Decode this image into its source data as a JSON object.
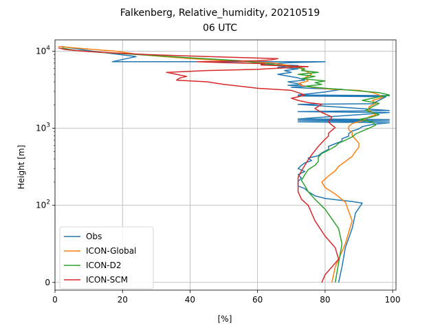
{
  "chart_data": {
    "type": "line",
    "title": "Falkenberg, Relative_humidity, 20210519",
    "subtitle": "06 UTC",
    "xlabel": "[%]",
    "ylabel": "Height [m]",
    "xlim": [
      0,
      101
    ],
    "y_scale": "symlog",
    "ylim": [
      -10,
      14000
    ],
    "grid": true,
    "legend_position": "lower-left",
    "x_ticks": [
      "0",
      "20",
      "40",
      "60",
      "80",
      "100"
    ],
    "y_ticks": [
      {
        "value": 0,
        "label": "0"
      },
      {
        "value": 100,
        "label": "10^2"
      },
      {
        "value": 1000,
        "label": "10^3"
      },
      {
        "value": 10000,
        "label": "10^4"
      }
    ],
    "series": [
      {
        "name": "Obs",
        "color": "#1f77b4",
        "points": [
          [
            84,
            0
          ],
          [
            85,
            20
          ],
          [
            86,
            45
          ],
          [
            88,
            70
          ],
          [
            89,
            90
          ],
          [
            91,
            107
          ],
          [
            88,
            112
          ],
          [
            84,
            117
          ],
          [
            80,
            123
          ],
          [
            77,
            133
          ],
          [
            75,
            150
          ],
          [
            74,
            165
          ],
          [
            72,
            178
          ],
          [
            72,
            190
          ],
          [
            72,
            205
          ],
          [
            73,
            225
          ],
          [
            72,
            250
          ],
          [
            74,
            275
          ],
          [
            72,
            300
          ],
          [
            73,
            330
          ],
          [
            74,
            355
          ],
          [
            76,
            380
          ],
          [
            75,
            410
          ],
          [
            78,
            440
          ],
          [
            79,
            480
          ],
          [
            81,
            530
          ],
          [
            81,
            580
          ],
          [
            83,
            630
          ],
          [
            85,
            680
          ],
          [
            85,
            730
          ],
          [
            87,
            790
          ],
          [
            87,
            850
          ],
          [
            88,
            920
          ],
          [
            90,
            980
          ],
          [
            91,
            1050
          ],
          [
            94,
            1120
          ],
          [
            99,
            1180
          ],
          [
            72,
            1210
          ],
          [
            99,
            1240
          ],
          [
            72,
            1270
          ],
          [
            99,
            1300
          ],
          [
            72,
            1320
          ],
          [
            99,
            1600
          ],
          [
            72,
            1640
          ],
          [
            99,
            1700
          ],
          [
            72,
            2040
          ],
          [
            94,
            2080
          ],
          [
            98,
            2560
          ],
          [
            72,
            2620
          ],
          [
            99,
            2650
          ],
          [
            72,
            2700
          ],
          [
            80,
            2950
          ],
          [
            85,
            3200
          ],
          [
            75,
            3300
          ],
          [
            70,
            3400
          ],
          [
            75,
            3500
          ],
          [
            69,
            3600
          ],
          [
            73,
            3700
          ],
          [
            72,
            3800
          ],
          [
            70,
            3900
          ],
          [
            69,
            4000
          ],
          [
            74,
            4200
          ],
          [
            72,
            4500
          ],
          [
            66,
            5000
          ],
          [
            70,
            5300
          ],
          [
            68,
            5600
          ],
          [
            72,
            5900
          ],
          [
            66,
            6200
          ],
          [
            72,
            6500
          ],
          [
            61,
            6800
          ],
          [
            70,
            7100
          ],
          [
            80,
            7300
          ],
          [
            17,
            7300
          ],
          [
            24,
            8500
          ],
          [
            11,
            10000
          ],
          [
            2,
            11500
          ]
        ]
      },
      {
        "name": "ICON-Global",
        "color": "#ff7f0e",
        "points": [
          [
            82,
            0
          ],
          [
            83,
            20
          ],
          [
            86,
            50
          ],
          [
            88,
            80
          ],
          [
            86,
            110
          ],
          [
            83,
            140
          ],
          [
            80,
            170
          ],
          [
            79,
            200
          ],
          [
            81,
            240
          ],
          [
            83,
            280
          ],
          [
            84,
            320
          ],
          [
            86,
            370
          ],
          [
            88,
            430
          ],
          [
            89,
            500
          ],
          [
            90,
            570
          ],
          [
            90,
            640
          ],
          [
            89,
            720
          ],
          [
            88,
            800
          ],
          [
            88,
            880
          ],
          [
            87,
            960
          ],
          [
            87,
            1050
          ],
          [
            88,
            1150
          ],
          [
            91,
            1250
          ],
          [
            93,
            1400
          ],
          [
            95,
            1500
          ],
          [
            93,
            1700
          ],
          [
            93,
            1900
          ],
          [
            95,
            2100
          ],
          [
            94,
            2300
          ],
          [
            97,
            2500
          ],
          [
            96,
            2700
          ],
          [
            94,
            2900
          ],
          [
            90,
            3100
          ],
          [
            82,
            3200
          ],
          [
            76,
            3400
          ],
          [
            73,
            3600
          ],
          [
            72,
            3800
          ],
          [
            75,
            4100
          ],
          [
            74,
            4500
          ],
          [
            76,
            5000
          ],
          [
            74,
            5600
          ],
          [
            72,
            6200
          ],
          [
            65,
            7000
          ],
          [
            40,
            8000
          ],
          [
            25,
            9000
          ],
          [
            18,
            10000
          ],
          [
            8,
            10800
          ],
          [
            1,
            11500
          ]
        ]
      },
      {
        "name": "ICON-D2",
        "color": "#2ca02c",
        "points": [
          [
            83,
            0
          ],
          [
            84,
            25
          ],
          [
            85,
            50
          ],
          [
            84,
            70
          ],
          [
            80,
            95
          ],
          [
            77,
            120
          ],
          [
            75,
            150
          ],
          [
            74,
            180
          ],
          [
            73,
            210
          ],
          [
            74,
            250
          ],
          [
            75,
            290
          ],
          [
            77,
            330
          ],
          [
            78,
            370
          ],
          [
            78,
            420
          ],
          [
            79,
            470
          ],
          [
            81,
            520
          ],
          [
            83,
            580
          ],
          [
            84,
            640
          ],
          [
            86,
            700
          ],
          [
            88,
            770
          ],
          [
            89,
            840
          ],
          [
            91,
            920
          ],
          [
            93,
            1000
          ],
          [
            95,
            1100
          ],
          [
            94,
            1200
          ],
          [
            90,
            1300
          ],
          [
            94,
            1400
          ],
          [
            96,
            1500
          ],
          [
            92,
            1700
          ],
          [
            94,
            1900
          ],
          [
            96,
            2100
          ],
          [
            91,
            2300
          ],
          [
            95,
            2500
          ],
          [
            99,
            2700
          ],
          [
            96,
            2900
          ],
          [
            88,
            3100
          ],
          [
            80,
            3300
          ],
          [
            74,
            3500
          ],
          [
            79,
            3700
          ],
          [
            77,
            3900
          ],
          [
            80,
            4100
          ],
          [
            73,
            4400
          ],
          [
            77,
            4700
          ],
          [
            72,
            5000
          ],
          [
            78,
            5300
          ],
          [
            73,
            5600
          ],
          [
            74,
            5900
          ],
          [
            70,
            6300
          ],
          [
            62,
            6900
          ],
          [
            55,
            7500
          ],
          [
            40,
            8200
          ],
          [
            25,
            9000
          ],
          [
            14,
            9600
          ],
          [
            6,
            10200
          ],
          [
            2,
            11000
          ]
        ]
      },
      {
        "name": "ICON-SCM",
        "color": "#d62728",
        "points": [
          [
            79,
            0
          ],
          [
            80,
            10
          ],
          [
            84,
            30
          ],
          [
            83,
            45
          ],
          [
            80,
            60
          ],
          [
            77,
            80
          ],
          [
            75,
            100
          ],
          [
            73,
            120
          ],
          [
            72,
            150
          ],
          [
            72,
            190
          ],
          [
            72,
            230
          ],
          [
            73,
            280
          ],
          [
            74,
            330
          ],
          [
            75,
            390
          ],
          [
            76,
            450
          ],
          [
            77,
            510
          ],
          [
            78,
            580
          ],
          [
            79,
            650
          ],
          [
            80,
            720
          ],
          [
            81,
            790
          ],
          [
            81,
            860
          ],
          [
            82,
            940
          ],
          [
            83,
            1020
          ],
          [
            82,
            1100
          ],
          [
            81,
            1200
          ],
          [
            82,
            1400
          ],
          [
            79,
            1600
          ],
          [
            77,
            1800
          ],
          [
            79,
            2050
          ],
          [
            75,
            2150
          ],
          [
            72,
            2300
          ],
          [
            70,
            2450
          ],
          [
            72,
            2550
          ],
          [
            74,
            2700
          ],
          [
            72,
            2900
          ],
          [
            70,
            3100
          ],
          [
            60,
            3300
          ],
          [
            55,
            3500
          ],
          [
            50,
            3700
          ],
          [
            45,
            4000
          ],
          [
            36,
            4200
          ],
          [
            37,
            4500
          ],
          [
            39,
            4700
          ],
          [
            36,
            5000
          ],
          [
            33,
            5300
          ],
          [
            45,
            5600
          ],
          [
            60,
            5800
          ],
          [
            66,
            6000
          ],
          [
            75,
            6300
          ],
          [
            61,
            6600
          ],
          [
            62,
            6900
          ],
          [
            50,
            7100
          ],
          [
            42,
            7300
          ],
          [
            60,
            7500
          ],
          [
            64,
            7700
          ],
          [
            66,
            8000
          ],
          [
            45,
            8500
          ],
          [
            28,
            9000
          ],
          [
            17,
            9500
          ],
          [
            8,
            10000
          ],
          [
            3,
            10500
          ],
          [
            1,
            11000
          ]
        ]
      }
    ]
  }
}
